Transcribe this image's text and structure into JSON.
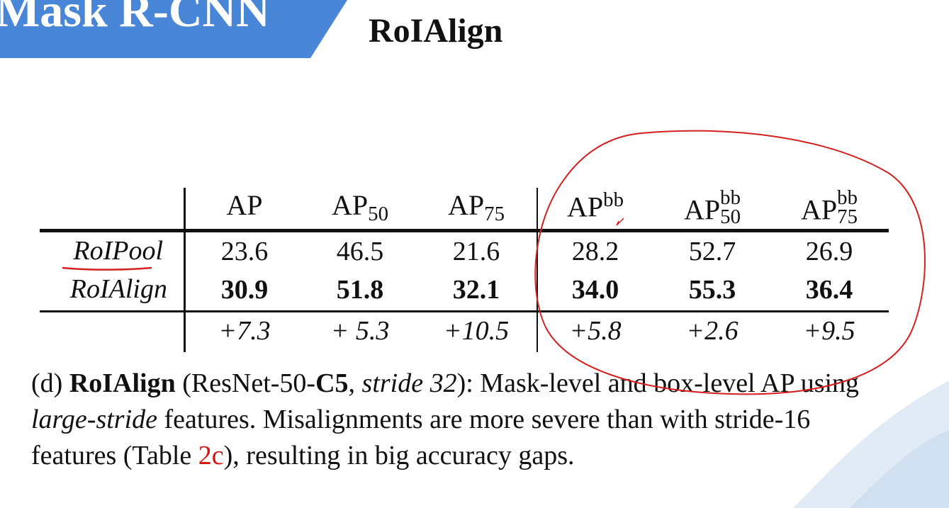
{
  "banner": {
    "title": "Mask R-CNN",
    "color": "#4a86d8"
  },
  "slide": {
    "title": "RoIAlign"
  },
  "table": {
    "headers": {
      "ap": "AP",
      "ap50": {
        "base": "AP",
        "sub": "50"
      },
      "ap75": {
        "base": "AP",
        "sub": "75"
      },
      "apbb": {
        "base": "AP",
        "sup": "bb"
      },
      "apbb50": {
        "base": "AP",
        "sup": "bb",
        "sub": "50"
      },
      "apbb75": {
        "base": "AP",
        "sup": "bb",
        "sub": "75"
      }
    },
    "rows": [
      {
        "label": "RoIPool",
        "values": [
          "23.6",
          "46.5",
          "21.6",
          "28.2",
          "52.7",
          "26.9"
        ]
      },
      {
        "label": "RoIAlign",
        "values": [
          "30.9",
          "51.8",
          "32.1",
          "34.0",
          "55.3",
          "36.4"
        ]
      }
    ],
    "deltas": [
      "+7.3",
      "+ 5.3",
      "+10.5",
      "+5.8",
      "+2.6",
      "+9.5"
    ]
  },
  "caption": {
    "part1": "(d) ",
    "bold1": "RoIAlign",
    "part2": " (ResNet-50-",
    "bold2": "C5",
    "part3": ", ",
    "ital1": "stride 32",
    "part4": "): Mask-level and box-level AP using ",
    "ital2": "large-stride",
    "part5": " features. Misalignments are more severe than with stride-16 features (Table ",
    "ref": "2c",
    "part6": "), resulting in big accuracy gaps."
  },
  "colors": {
    "annotation": "#d61f1f",
    "reference": "#d0160f",
    "deco": "#dbe8f5"
  }
}
